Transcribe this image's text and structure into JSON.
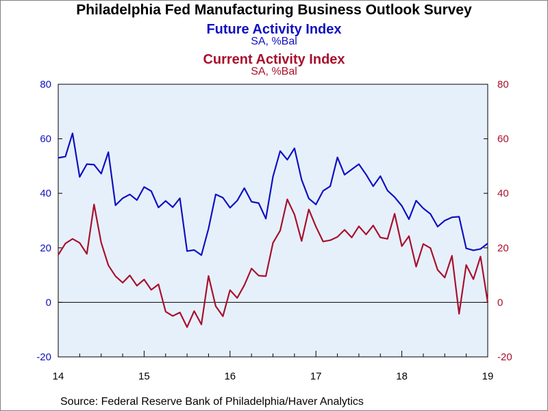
{
  "title": "Philadelphia Fed Manufacturing Business Outlook Survey",
  "source": "Source:  Federal Reserve Bank of Philadelphia/Haver Analytics",
  "colors": {
    "future": "#1010c0",
    "current": "#a8102c",
    "plot_bg": "#e6f0fb",
    "axis": "#000000"
  },
  "chart_data": {
    "type": "line",
    "title": "Philadelphia Fed Manufacturing Business Outlook Survey",
    "x_label": "",
    "x_ticks": [
      "14",
      "15",
      "16",
      "17",
      "18",
      "19"
    ],
    "x_range": [
      "2014-01",
      "2019-01"
    ],
    "y_range": [
      -20,
      80
    ],
    "y_ticks": [
      -20,
      0,
      20,
      40,
      60,
      80
    ],
    "y_tick_labels": [
      "-20",
      "0",
      "20",
      "40",
      "60",
      "80"
    ],
    "grid": false,
    "zero_line": true,
    "dual_axis": true,
    "series": [
      {
        "name": "Future Activity Index",
        "unit": "SA, %Bal",
        "axis": "left",
        "color": "#1010c0",
        "start": "2014-01",
        "frequency": "monthly",
        "values": [
          53,
          53.5,
          62,
          46,
          50.7,
          50.5,
          47.2,
          55.1,
          35.6,
          38.2,
          39.6,
          37.5,
          42.3,
          40.8,
          34.8,
          37.2,
          34.9,
          38.2,
          18.8,
          19.2,
          17.3,
          27,
          39.6,
          38.4,
          34.7,
          37.3,
          41.9,
          36.9,
          36.4,
          30.7,
          46.1,
          55.5,
          52.3,
          56.5,
          45,
          38.1,
          35.9,
          40.9,
          42.6,
          53.2,
          46.8,
          48.8,
          50.7,
          46.9,
          42.6,
          46.3,
          41,
          38.6,
          35.4,
          30.5,
          37.3,
          34.5,
          32.4,
          27.8,
          30,
          31.2,
          31.4,
          19.8,
          19.1,
          19.6,
          21.6
        ]
      },
      {
        "name": "Current Activity Index",
        "unit": "SA, %Bal",
        "axis": "right",
        "color": "#a8102c",
        "start": "2014-01",
        "frequency": "monthly",
        "values": [
          17.4,
          21.6,
          23.3,
          21.8,
          17.8,
          35.9,
          21.9,
          13.6,
          9.6,
          7.2,
          9.9,
          6.1,
          8.4,
          4.6,
          6.6,
          -3.4,
          -5,
          -3.7,
          -9.1,
          -3.2,
          -8.1,
          9.7,
          -1.4,
          -5.1,
          4.5,
          1.6,
          6.3,
          12.4,
          9.8,
          9.6,
          21.8,
          26.3,
          37.8,
          32.2,
          22.5,
          34.1,
          27.8,
          22.3,
          22.8,
          24,
          26.6,
          23.8,
          27.9,
          24.9,
          28.2,
          23.8,
          23.3,
          32.5,
          20.6,
          24.3,
          13.1,
          21.4,
          19.9,
          11.9,
          9.1,
          17.1,
          -4.2,
          13.7,
          8.5,
          16.8,
          0
        ]
      }
    ]
  }
}
